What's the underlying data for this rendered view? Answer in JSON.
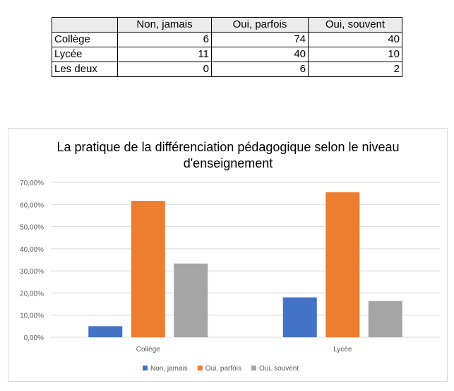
{
  "table": {
    "headers": [
      "",
      "Non, jamais",
      "Oui, parfois",
      "Oui, souvent"
    ],
    "rows": [
      {
        "label": "Collège",
        "values": [
          "6",
          "74",
          "40"
        ]
      },
      {
        "label": "Lycée",
        "values": [
          "11",
          "40",
          "10"
        ]
      },
      {
        "label": "Les deux",
        "values": [
          "0",
          "6",
          "2"
        ]
      }
    ]
  },
  "chart_data": {
    "type": "bar",
    "title_lines": [
      "La pratique de la différenciation pédagogique selon le niveau",
      "d'enseignement"
    ],
    "categories": [
      "Collège",
      "Lycée"
    ],
    "series": [
      {
        "name": "Non, jamais",
        "color": "#4472c4",
        "values": [
          5.0,
          18.03
        ]
      },
      {
        "name": "Oui, parfois",
        "color": "#ed7d31",
        "values": [
          61.67,
          65.57
        ]
      },
      {
        "name": "Oui, souvent",
        "color": "#a5a5a5",
        "values": [
          33.33,
          16.39
        ]
      }
    ],
    "yticks": [
      "0,00%",
      "10,00%",
      "20,00%",
      "30,00%",
      "40,00%",
      "50,00%",
      "60,00%",
      "70,00%"
    ],
    "ylim": [
      0,
      70
    ],
    "grid": true,
    "legend": "bottom"
  }
}
